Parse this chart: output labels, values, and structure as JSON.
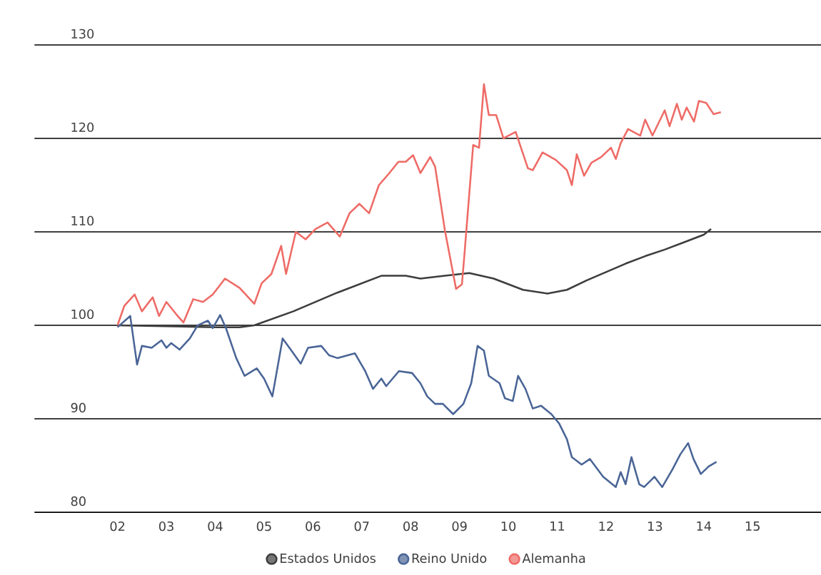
{
  "chart_data": {
    "type": "line",
    "xlim": [
      2000.3,
      2016.4
    ],
    "ylim": [
      80,
      130
    ],
    "xticks": [
      {
        "value": 2002,
        "label": "02"
      },
      {
        "value": 2003,
        "label": "03"
      },
      {
        "value": 2004,
        "label": "04"
      },
      {
        "value": 2005,
        "label": "05"
      },
      {
        "value": 2006,
        "label": "06"
      },
      {
        "value": 2007,
        "label": "07"
      },
      {
        "value": 2008,
        "label": "08"
      },
      {
        "value": 2009,
        "label": "09"
      },
      {
        "value": 2010,
        "label": "10"
      },
      {
        "value": 2011,
        "label": "11"
      },
      {
        "value": 2012,
        "label": "12"
      },
      {
        "value": 2013,
        "label": "13"
      },
      {
        "value": 2014,
        "label": "14"
      },
      {
        "value": 2015,
        "label": "15"
      }
    ],
    "yticks": [
      80,
      90,
      100,
      110,
      120,
      130
    ],
    "grid": "y",
    "legend": "bottom",
    "series": [
      {
        "name": "Estados Unidos",
        "color": "#3d3d3d",
        "x": [
          2002.0,
          2003.0,
          2004.0,
          2004.5,
          2004.8,
          2005.6,
          2006.5,
          2007.4,
          2007.9,
          2008.2,
          2008.7,
          2009.2,
          2009.7,
          2010.3,
          2010.8,
          2011.2,
          2011.6,
          2012.0,
          2012.4,
          2012.8,
          2013.2,
          2013.6,
          2014.0,
          2014.15
        ],
        "values": [
          100,
          99.9,
          99.8,
          99.8,
          100,
          101.5,
          103.5,
          105.3,
          105.3,
          105.0,
          105.3,
          105.6,
          105.0,
          103.8,
          103.4,
          103.8,
          104.8,
          105.7,
          106.6,
          107.4,
          108.1,
          108.9,
          109.7,
          110.3
        ]
      },
      {
        "name": "Reino Unido",
        "color": "#4a6596",
        "x": [
          2002.0,
          2002.26,
          2002.4,
          2002.5,
          2002.7,
          2002.9,
          2003.0,
          2003.1,
          2003.27,
          2003.48,
          2003.64,
          2003.85,
          2003.95,
          2004.1,
          2004.22,
          2004.43,
          2004.6,
          2004.85,
          2005.0,
          2005.17,
          2005.38,
          2005.6,
          2005.75,
          2005.9,
          2006.17,
          2006.33,
          2006.5,
          2006.86,
          2007.07,
          2007.23,
          2007.4,
          2007.5,
          2007.76,
          2008.03,
          2008.2,
          2008.34,
          2008.5,
          2008.66,
          2008.87,
          2009.08,
          2009.24,
          2009.37,
          2009.5,
          2009.6,
          2009.82,
          2009.93,
          2010.09,
          2010.2,
          2010.35,
          2010.5,
          2010.67,
          2010.88,
          2011.04,
          2011.2,
          2011.3,
          2011.5,
          2011.67,
          2011.94,
          2012.2,
          2012.3,
          2012.4,
          2012.52,
          2012.68,
          2012.78,
          2012.99,
          2013.15,
          2013.36,
          2013.52,
          2013.68,
          2013.79,
          2013.94,
          2014.1,
          2014.26
        ],
        "values": [
          99.8,
          101,
          95.8,
          97.8,
          97.6,
          98.4,
          97.6,
          98.1,
          97.4,
          98.6,
          100,
          100.5,
          99.7,
          101.1,
          99.7,
          96.5,
          94.6,
          95.4,
          94.3,
          92.4,
          98.6,
          97,
          95.9,
          97.6,
          97.8,
          96.8,
          96.5,
          97,
          95.1,
          93.2,
          94.3,
          93.5,
          95.1,
          94.9,
          93.8,
          92.4,
          91.6,
          91.6,
          90.5,
          91.6,
          93.8,
          97.8,
          97.3,
          94.6,
          93.8,
          92.2,
          91.9,
          94.6,
          93.2,
          91.1,
          91.4,
          90.5,
          89.5,
          87.8,
          85.9,
          85.1,
          85.7,
          83.8,
          82.7,
          84.3,
          83,
          85.9,
          83,
          82.7,
          83.8,
          82.7,
          84.6,
          86.2,
          87.4,
          85.7,
          84.1,
          84.9,
          85.4
        ]
      },
      {
        "name": "Alemanha",
        "color": "#ee6b66",
        "x": [
          2002.0,
          2002.14,
          2002.35,
          2002.5,
          2002.72,
          2002.85,
          2003.0,
          2003.2,
          2003.35,
          2003.55,
          2003.75,
          2003.95,
          2004.2,
          2004.5,
          2004.8,
          2004.95,
          2005.15,
          2005.35,
          2005.45,
          2005.65,
          2005.85,
          2006.05,
          2006.3,
          2006.55,
          2006.75,
          2006.95,
          2007.15,
          2007.35,
          2007.55,
          2007.75,
          2007.9,
          2008.05,
          2008.2,
          2008.4,
          2008.5,
          2008.7,
          2008.93,
          2009.05,
          2009.1,
          2009.28,
          2009.4,
          2009.5,
          2009.6,
          2009.75,
          2009.9,
          2010.15,
          2010.4,
          2010.5,
          2010.7,
          2010.97,
          2011.2,
          2011.3,
          2011.4,
          2011.55,
          2011.7,
          2011.9,
          2012.1,
          2012.2,
          2012.3,
          2012.45,
          2012.7,
          2012.8,
          2012.95,
          2013.2,
          2013.3,
          2013.45,
          2013.55,
          2013.65,
          2013.8,
          2013.9,
          2014.05,
          2014.2,
          2014.35
        ],
        "values": [
          100,
          102.1,
          103.3,
          101.5,
          103.0,
          101,
          102.5,
          101.2,
          100.3,
          102.8,
          102.5,
          103.3,
          105,
          104,
          102.3,
          104.5,
          105.5,
          108.5,
          105.5,
          110,
          109.2,
          110.3,
          111,
          109.5,
          112,
          113,
          112,
          115,
          116.2,
          117.5,
          117.5,
          118.2,
          116.3,
          118,
          117,
          110.2,
          103.9,
          104.4,
          107.5,
          119.3,
          119,
          125.8,
          122.5,
          122.5,
          120,
          120.7,
          116.8,
          116.6,
          118.5,
          117.7,
          116.6,
          115,
          118.3,
          116,
          117.4,
          118,
          119,
          117.8,
          119.5,
          121,
          120.3,
          122,
          120.3,
          123,
          121.3,
          123.7,
          122,
          123.3,
          121.8,
          124,
          123.8,
          122.6,
          122.8
        ]
      }
    ]
  }
}
